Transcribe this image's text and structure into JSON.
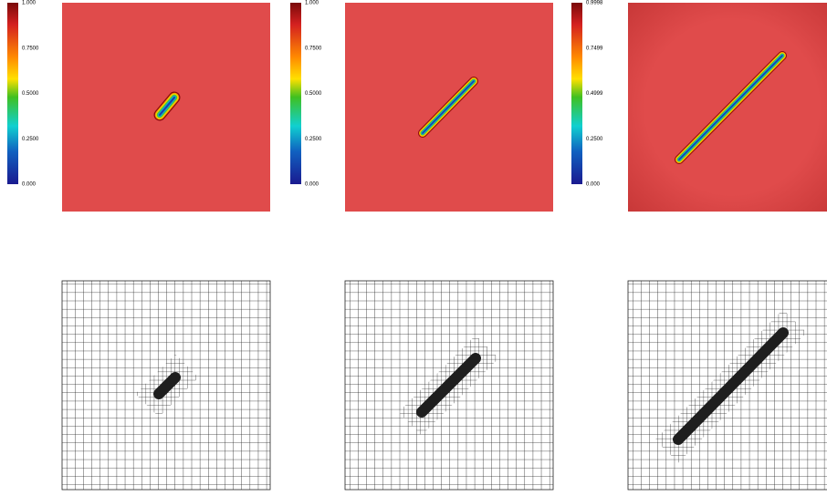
{
  "colorbars": [
    {
      "ticks": [
        "1.000",
        "0.7500",
        "0.5000",
        "0.2500",
        "0.000"
      ]
    },
    {
      "ticks": [
        "1.000",
        "0.7500",
        "0.5000",
        "0.2500",
        "0.000"
      ]
    },
    {
      "ticks": [
        "0.9998",
        "0.7499",
        "0.4999",
        "0.2500",
        "0.000"
      ]
    }
  ]
}
